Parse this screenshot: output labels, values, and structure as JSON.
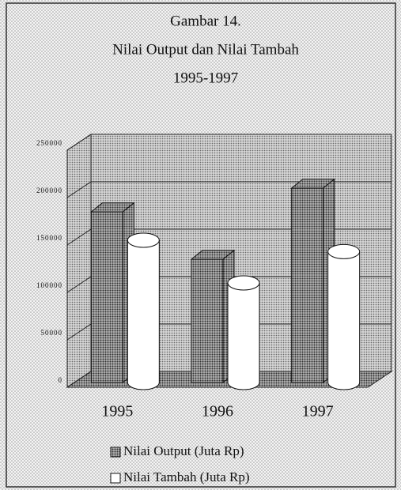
{
  "chart_data": {
    "type": "bar3d",
    "title": [
      "Gambar 14.",
      "Nilai Output dan Nilai Tambah",
      "1995-1997"
    ],
    "categories": [
      "1995",
      "1996",
      "1997"
    ],
    "series": [
      {
        "name": "Nilai Output (Juta Rp)",
        "color": "#6f6f6f",
        "values": [
          180000,
          130000,
          205000
        ]
      },
      {
        "name": "Nilai Tambah (Juta Rp)",
        "color": "#ffffff",
        "values": [
          150000,
          105000,
          138000
        ]
      }
    ],
    "ylim": [
      0,
      250000
    ],
    "yticks": [
      0,
      50000,
      100000,
      150000,
      200000,
      250000
    ],
    "grid": true
  }
}
